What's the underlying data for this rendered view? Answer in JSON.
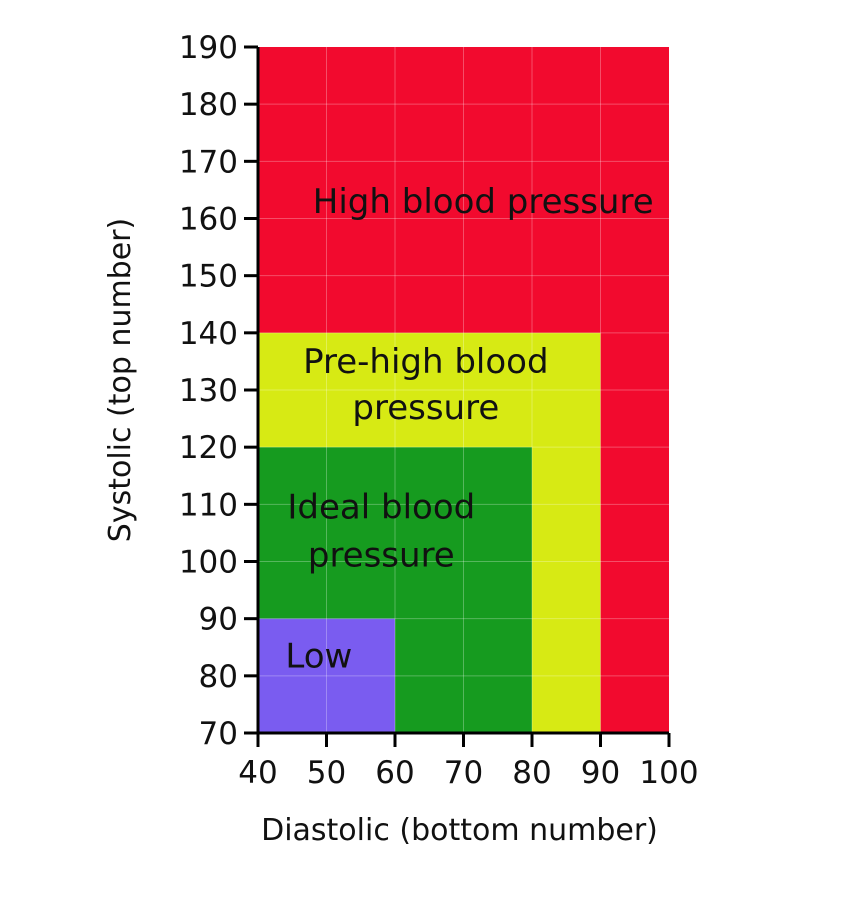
{
  "chart_data": {
    "type": "area",
    "xlabel": "Diastolic (bottom number)",
    "ylabel": "Systolic (top number)",
    "xlim": [
      40,
      100
    ],
    "ylim": [
      70,
      190
    ],
    "x_ticks": [
      "40",
      "50",
      "60",
      "70",
      "80",
      "90",
      "100"
    ],
    "y_ticks": [
      "70",
      "80",
      "90",
      "100",
      "110",
      "120",
      "130",
      "140",
      "150",
      "160",
      "170",
      "180",
      "190"
    ],
    "grid": true,
    "zones": [
      {
        "name": "High blood pressure",
        "label_lines": [
          "High blood pressure"
        ],
        "diastolic_max": 100,
        "systolic_max": 190,
        "color": "#f20a2e"
      },
      {
        "name": "Pre-high blood pressure",
        "label_lines": [
          "Pre-high blood",
          "pressure"
        ],
        "diastolic_max": 90,
        "systolic_max": 140,
        "color": "#d7ea14"
      },
      {
        "name": "Ideal blood pressure",
        "label_lines": [
          "Ideal blood",
          "pressure"
        ],
        "diastolic_max": 80,
        "systolic_max": 120,
        "color": "#169b1f"
      },
      {
        "name": "Low",
        "label_lines": [
          "Low"
        ],
        "diastolic_max": 60,
        "systolic_max": 90,
        "color": "#7a5cf0"
      }
    ]
  }
}
